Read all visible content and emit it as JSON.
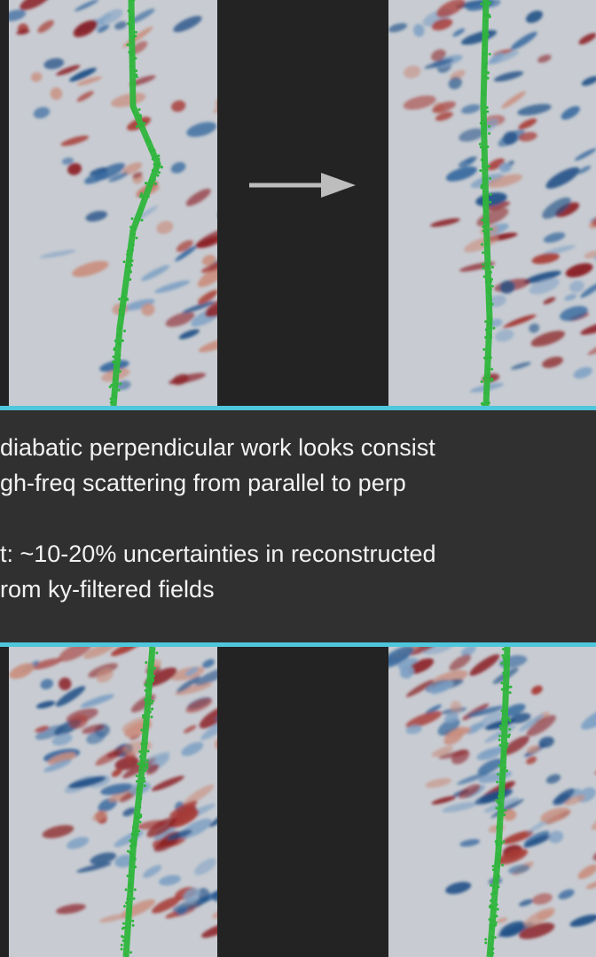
{
  "notes": {
    "paragraphs": [
      [
        "diabatic perpendicular work looks consist",
        "gh-freq scattering from parallel to perp"
      ],
      [
        "t: ~10-20% uncertainties in reconstructed",
        "rom ky-filtered fields"
      ]
    ]
  }
}
